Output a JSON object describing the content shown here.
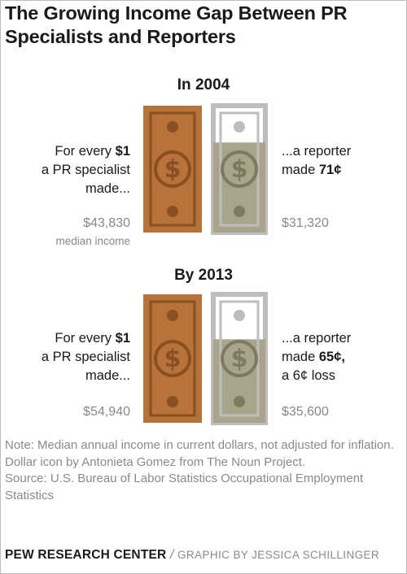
{
  "header": {
    "title_line1": "The Growing Income Gap Between PR",
    "title_line2": "Specialists and Reporters"
  },
  "chart_data": [
    {
      "type": "bar",
      "panel_label": "In 2004",
      "lead_line1_text": "For every ",
      "lead_line1_bold": "$1",
      "lead_line2": "a PR specialist",
      "lead_line3": "made...",
      "reporter_line1": "...a reporter",
      "reporter_line2_text": "made ",
      "reporter_line2_bold": "71¢",
      "reporter_line3": "",
      "categories": [
        "PR specialist",
        "Reporter"
      ],
      "values_cents": [
        100,
        71
      ],
      "pr_income_label": "$43,830",
      "pr_income_sublabel": "median income",
      "reporter_income_label": "$31,320",
      "pr_income": 43830,
      "reporter_income": 31320
    },
    {
      "type": "bar",
      "panel_label": "By 2013",
      "lead_line1_text": "For every ",
      "lead_line1_bold": "$1",
      "lead_line2": "a PR specialist",
      "lead_line3": "made...",
      "reporter_line1": "...a reporter",
      "reporter_line2_text": "made ",
      "reporter_line2_bold": "65¢,",
      "reporter_line3": "a 6¢ loss",
      "categories": [
        "PR specialist",
        "Reporter"
      ],
      "values_cents": [
        100,
        65
      ],
      "pr_income_label": "$54,940",
      "pr_income_sublabel": "",
      "reporter_income_label": "$35,600",
      "pr_income": 54940,
      "reporter_income": 35600
    }
  ],
  "notes": {
    "note": "Note: Median annual income in current dollars, not adjusted for inflation. Dollar icon by Antonieta Gomez from The Noun Project.",
    "source": "Source: U.S. Bureau of Labor Statistics Occupational Employment Statistics"
  },
  "footer": {
    "org": "PEW RESEARCH CENTER",
    "separator": "/",
    "credit": "GRAPHIC BY JESSICA SCHILLINGER"
  },
  "colors": {
    "pr_bill": "#b8733a",
    "pr_bill_dark": "#8a4f22",
    "reporter_fill": "#a9a58c",
    "reporter_outline": "#bdbdbd",
    "reporter_dark": "#7e7a62"
  },
  "icons": {
    "pr": "dollar-bill-icon",
    "reporter": "dollar-bill-icon"
  }
}
